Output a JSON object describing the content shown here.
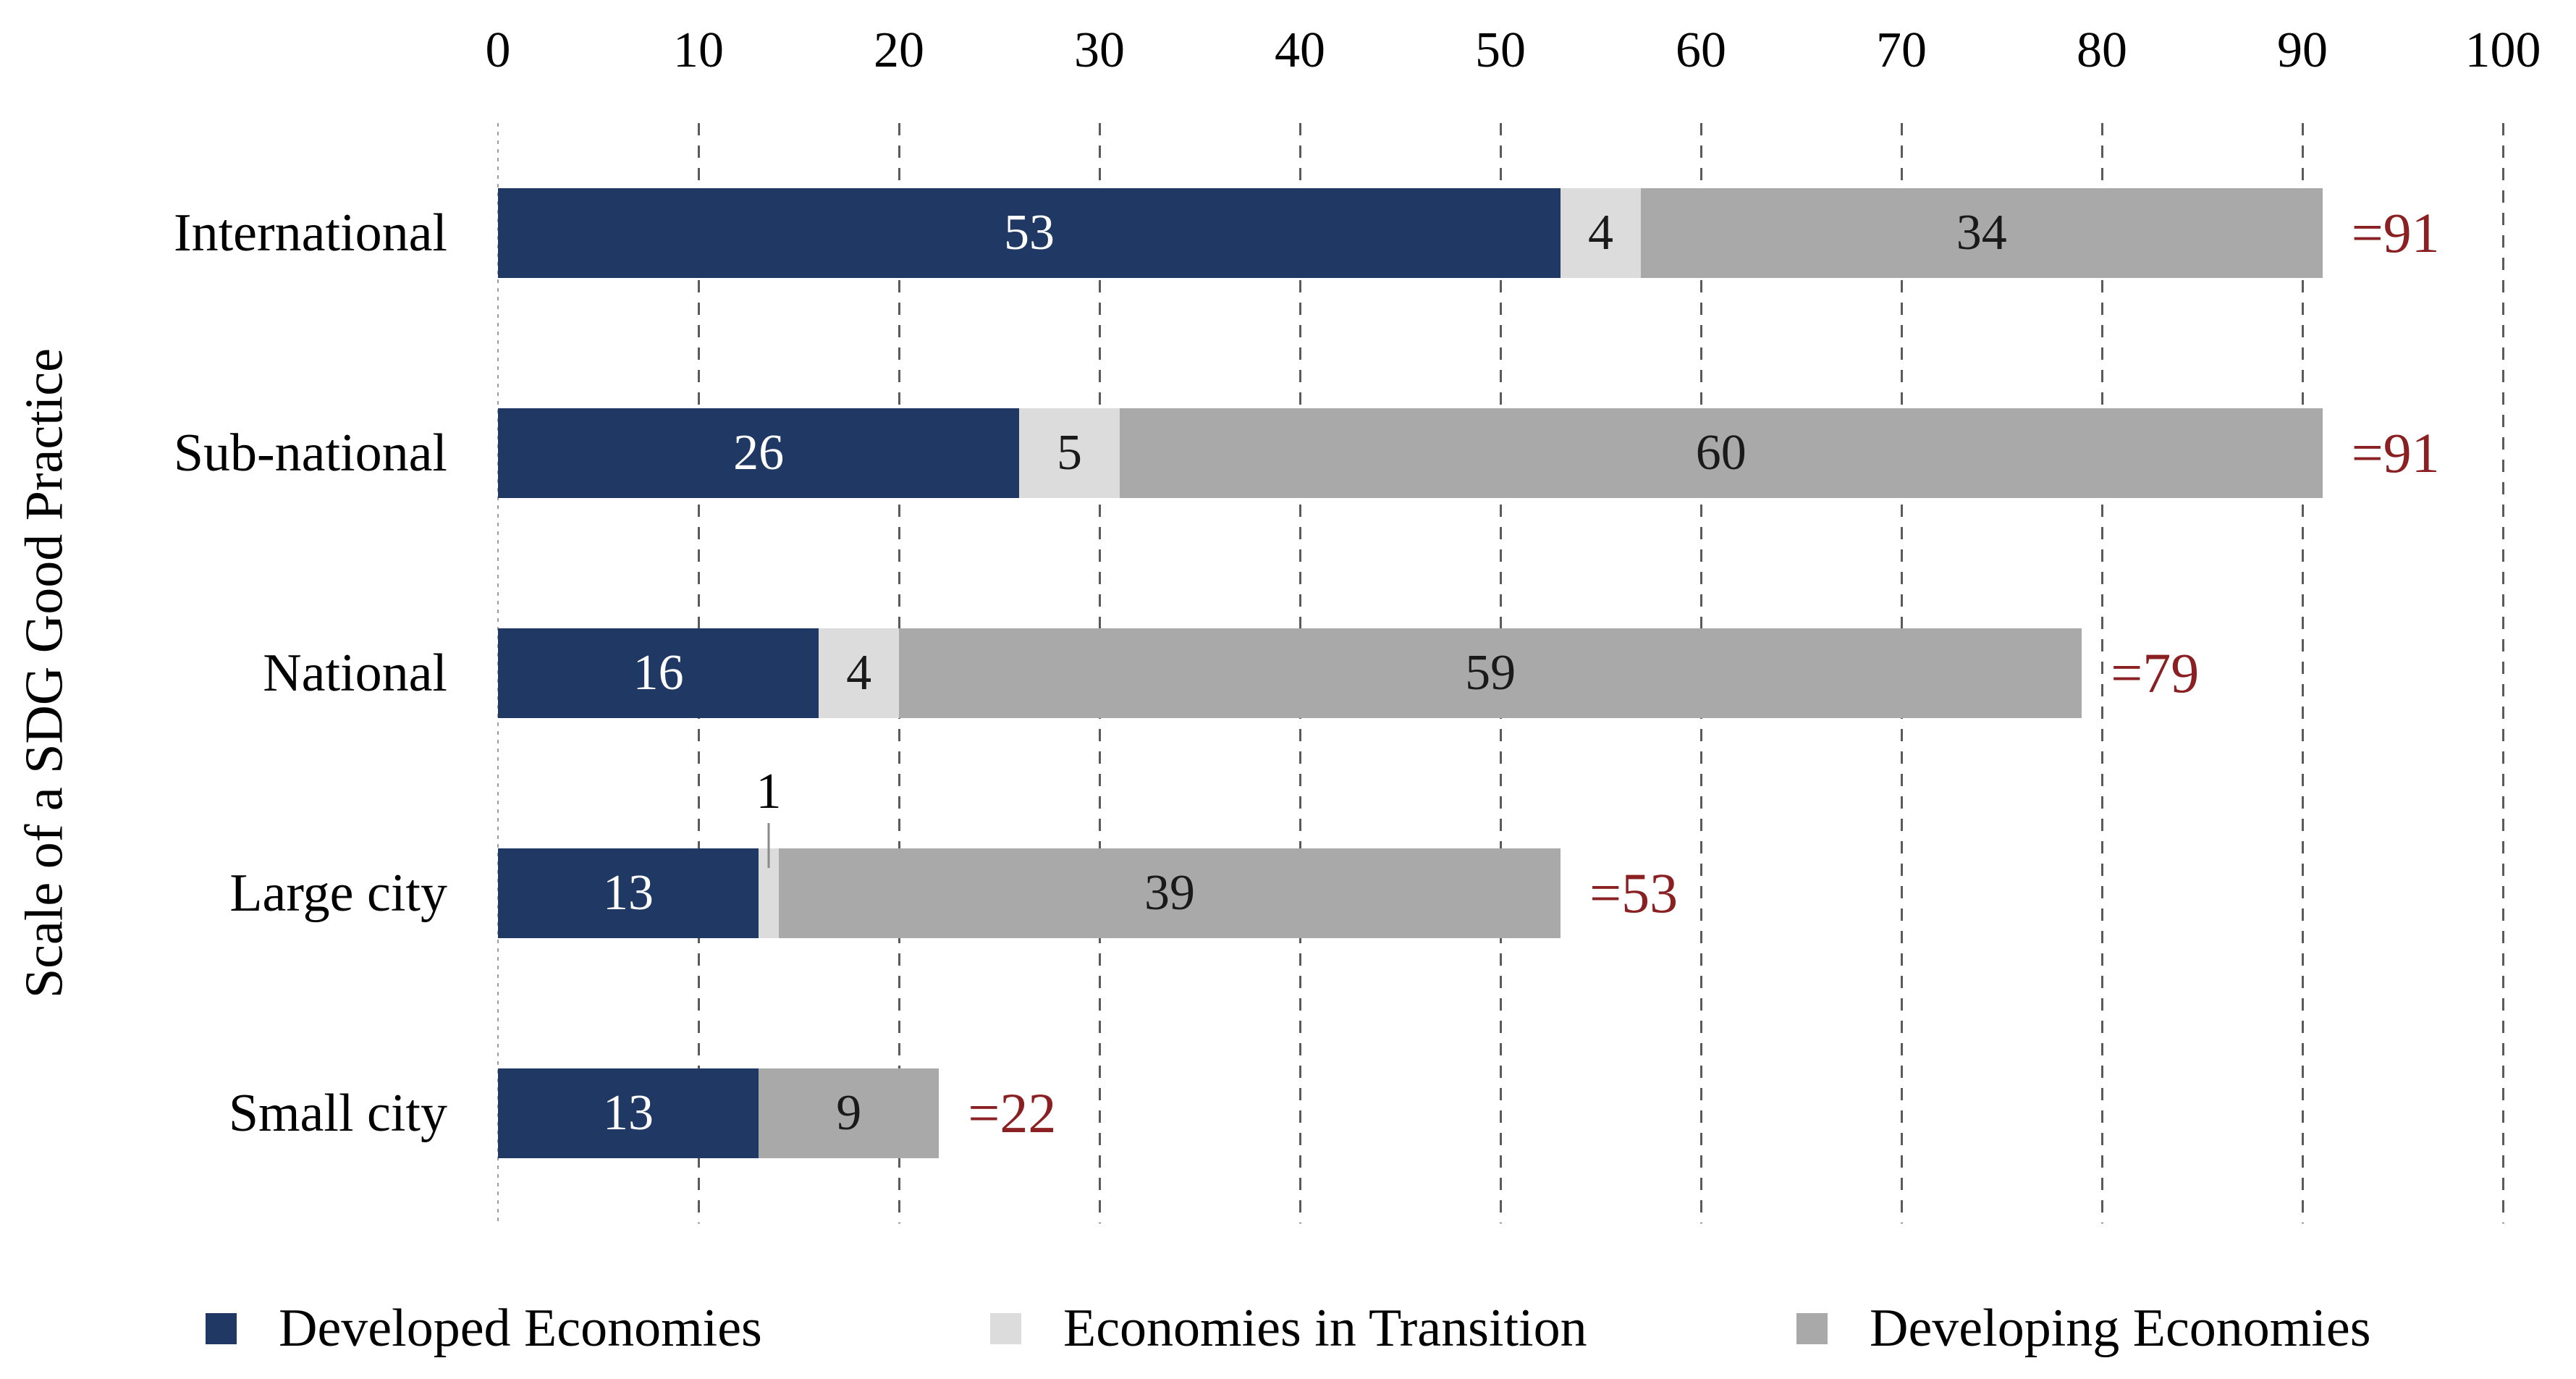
{
  "chart_data": {
    "type": "bar",
    "variant": "horizontal-stacked",
    "title": "",
    "xlabel": "",
    "ylabel": "Scale of a SDG Good Practice",
    "xlim": [
      0,
      100
    ],
    "xticks": [
      0,
      10,
      20,
      30,
      40,
      50,
      60,
      70,
      80,
      90,
      100
    ],
    "grid": "vertical-dashed",
    "legend_position": "bottom",
    "categories": [
      "International",
      "Sub-national",
      "National",
      "Large city",
      "Small city"
    ],
    "series": [
      {
        "name": "Developed Economies",
        "color": "#1f3864",
        "label_color": "#ffffff",
        "values": [
          53,
          26,
          16,
          13,
          13
        ]
      },
      {
        "name": "Economies in Transition",
        "color": "#dcdcdc",
        "label_color": "#1a1a1a",
        "values": [
          4,
          5,
          4,
          1,
          0
        ]
      },
      {
        "name": "Developing Economies",
        "color": "#a9a9a9",
        "label_color": "#1a1a1a",
        "values": [
          34,
          60,
          59,
          39,
          9
        ]
      }
    ],
    "totals": [
      91,
      91,
      79,
      53,
      22
    ],
    "totals_display": [
      "=91",
      "=91",
      "=79",
      "=53",
      "=22"
    ],
    "totals_color": "#8b2022",
    "callout": {
      "category": "Large city",
      "series": "Economies in Transition",
      "value": 1
    }
  }
}
